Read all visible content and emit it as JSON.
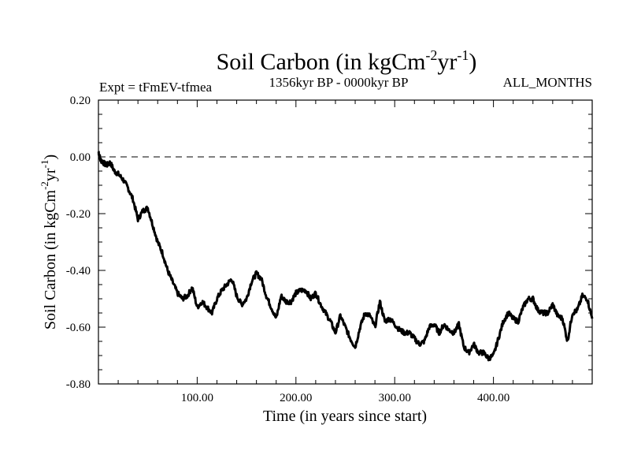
{
  "chart_data": {
    "type": "line",
    "title": "Soil Carbon (in kgCm",
    "title_sup1": "-2",
    "title_mid": "yr",
    "title_sup2": "-1",
    "title_end": ")",
    "subtitle_left": "Expt = tFmEV-tfmea",
    "subtitle_center": "1356kyr BP - 0000kyr BP",
    "subtitle_right": "ALL_MONTHS",
    "xlabel": "Time (in years since start)",
    "ylabel": "Soil Carbon (in kgCm",
    "ylabel_sup1": "-2",
    "ylabel_mid": "yr",
    "ylabel_sup2": "-1",
    "ylabel_end": ")",
    "xlim": [
      0,
      500
    ],
    "ylim": [
      -0.8,
      0.2
    ],
    "xticks": [
      100,
      200,
      300,
      400
    ],
    "xtick_labels": [
      "100.00",
      "200.00",
      "300.00",
      "400.00"
    ],
    "yticks": [
      0.2,
      0.0,
      -0.2,
      -0.4,
      -0.6,
      -0.8
    ],
    "ytick_labels": [
      "0.20",
      "0.00",
      "-0.20",
      "-0.40",
      "-0.60",
      "-0.80"
    ],
    "reference_line": 0.0,
    "series": [
      {
        "name": "Soil Carbon",
        "x": [
          0,
          2,
          5,
          8,
          12,
          16,
          20,
          25,
          30,
          35,
          40,
          45,
          50,
          55,
          60,
          65,
          70,
          75,
          80,
          85,
          90,
          95,
          100,
          105,
          110,
          115,
          120,
          125,
          130,
          135,
          140,
          145,
          150,
          155,
          160,
          165,
          170,
          175,
          180,
          185,
          190,
          195,
          200,
          205,
          210,
          215,
          220,
          225,
          230,
          235,
          240,
          245,
          250,
          255,
          260,
          265,
          270,
          275,
          280,
          285,
          290,
          295,
          300,
          305,
          310,
          315,
          320,
          325,
          330,
          335,
          340,
          345,
          350,
          355,
          360,
          365,
          370,
          375,
          380,
          385,
          390,
          395,
          400,
          405,
          410,
          415,
          420,
          425,
          430,
          435,
          440,
          445,
          450,
          455,
          460,
          465,
          470,
          475,
          480,
          485,
          490,
          495,
          500
        ],
        "y": [
          0.02,
          -0.01,
          -0.02,
          -0.03,
          -0.02,
          -0.05,
          -0.06,
          -0.08,
          -0.11,
          -0.15,
          -0.22,
          -0.19,
          -0.18,
          -0.24,
          -0.3,
          -0.34,
          -0.4,
          -0.44,
          -0.48,
          -0.5,
          -0.49,
          -0.46,
          -0.53,
          -0.51,
          -0.53,
          -0.55,
          -0.5,
          -0.47,
          -0.45,
          -0.43,
          -0.49,
          -0.52,
          -0.5,
          -0.44,
          -0.41,
          -0.43,
          -0.49,
          -0.53,
          -0.57,
          -0.49,
          -0.51,
          -0.51,
          -0.48,
          -0.47,
          -0.47,
          -0.5,
          -0.48,
          -0.52,
          -0.55,
          -0.58,
          -0.62,
          -0.56,
          -0.6,
          -0.64,
          -0.67,
          -0.6,
          -0.55,
          -0.56,
          -0.6,
          -0.51,
          -0.58,
          -0.57,
          -0.59,
          -0.61,
          -0.62,
          -0.62,
          -0.64,
          -0.66,
          -0.65,
          -0.6,
          -0.59,
          -0.62,
          -0.59,
          -0.61,
          -0.62,
          -0.59,
          -0.67,
          -0.69,
          -0.66,
          -0.69,
          -0.69,
          -0.71,
          -0.7,
          -0.64,
          -0.58,
          -0.55,
          -0.57,
          -0.58,
          -0.53,
          -0.5,
          -0.5,
          -0.54,
          -0.55,
          -0.55,
          -0.52,
          -0.56,
          -0.57,
          -0.65,
          -0.55,
          -0.54,
          -0.49,
          -0.5,
          -0.57
        ]
      }
    ]
  }
}
